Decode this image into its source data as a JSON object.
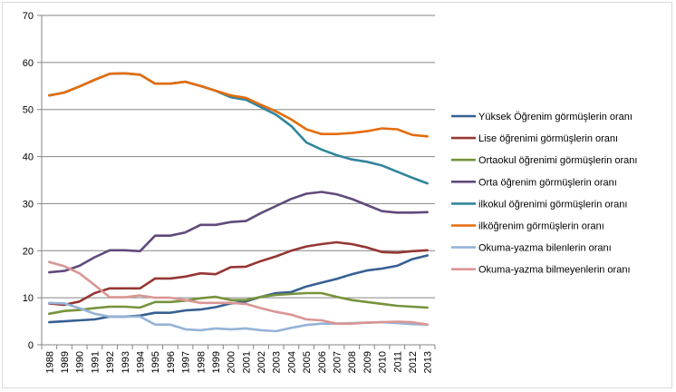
{
  "chart_data": {
    "type": "line",
    "title": "",
    "xlabel": "",
    "ylabel": "",
    "ylim": [
      0,
      70
    ],
    "yticks": [
      "0",
      "10",
      "20",
      "30",
      "40",
      "50",
      "60",
      "70"
    ],
    "grid": true,
    "legend_position": "right",
    "categories": [
      "1988",
      "1989",
      "1990",
      "1991",
      "1992",
      "1993",
      "1994",
      "1995",
      "1996",
      "1997",
      "1998",
      "1999",
      "2000",
      "2001",
      "2002",
      "2003",
      "2004",
      "2005",
      "2006",
      "2007",
      "2008",
      "2009",
      "2010",
      "2011",
      "2012",
      "2013"
    ],
    "series": [
      {
        "name": "Yüksek Öğrenim görmüşlerin oranı",
        "color": "#376092",
        "values": [
          4.8,
          5.0,
          5.2,
          5.4,
          6.0,
          6.0,
          6.2,
          6.8,
          6.8,
          7.3,
          7.5,
          8.0,
          8.8,
          9.2,
          10.2,
          11.0,
          11.2,
          12.4,
          13.2,
          14.0,
          15.0,
          15.8,
          16.2,
          16.8,
          18.2,
          19.0
        ]
      },
      {
        "name": "Lise öğrenimi görmüşlerin oranı",
        "color": "#953735",
        "values": [
          8.8,
          8.5,
          9.2,
          11.0,
          12.0,
          12.0,
          12.0,
          14.1,
          14.1,
          14.5,
          15.2,
          15.0,
          16.5,
          16.6,
          17.8,
          18.8,
          20.0,
          20.9,
          21.4,
          21.8,
          21.4,
          20.7,
          19.7,
          19.6,
          19.9,
          20.1
        ]
      },
      {
        "name": "Ortaokul öğrenimi görmüşlerin oranı",
        "color": "#77933C",
        "values": [
          6.6,
          7.2,
          7.4,
          7.8,
          8.1,
          8.1,
          7.9,
          9.1,
          9.1,
          9.4,
          9.9,
          10.2,
          9.5,
          9.5,
          10.2,
          10.6,
          10.8,
          11.0,
          11.0,
          10.2,
          9.5,
          9.1,
          8.7,
          8.3,
          8.1,
          7.9
        ]
      },
      {
        "name": "Orta öğrenim görmüşlerin oranı",
        "color": "#604A7B",
        "values": [
          15.4,
          15.7,
          16.8,
          18.6,
          20.1,
          20.1,
          19.9,
          23.2,
          23.2,
          23.9,
          25.5,
          25.5,
          26.1,
          26.3,
          28.0,
          29.5,
          31.0,
          32.1,
          32.5,
          32.0,
          31.0,
          29.7,
          28.4,
          28.1,
          28.1,
          28.2
        ]
      },
      {
        "name": "ilkokul öğrenimi görmüşlerin oranı",
        "color": "#31859C",
        "values": [
          53.0,
          53.6,
          54.9,
          56.3,
          57.6,
          57.7,
          57.4,
          55.5,
          55.5,
          55.9,
          55.0,
          54.0,
          52.6,
          52.1,
          50.5,
          48.9,
          46.5,
          43.0,
          41.5,
          40.3,
          39.4,
          38.9,
          38.1,
          36.8,
          35.5,
          34.3
        ]
      },
      {
        "name": "ilköğrenim görmüşlerin oranı",
        "color": "#E46C0A",
        "values": [
          53.0,
          53.6,
          54.9,
          56.3,
          57.6,
          57.7,
          57.4,
          55.5,
          55.5,
          55.9,
          55.0,
          54.0,
          53.0,
          52.5,
          51.0,
          49.6,
          47.9,
          45.8,
          44.8,
          44.8,
          45.0,
          45.4,
          46.0,
          45.8,
          44.6,
          44.3
        ]
      },
      {
        "name": "Okuma-yazma bilenlerin  oranı",
        "color": "#95B3D7",
        "values": [
          8.9,
          8.8,
          7.8,
          6.6,
          6.0,
          6.0,
          6.0,
          4.3,
          4.3,
          3.3,
          3.1,
          3.5,
          3.3,
          3.5,
          3.1,
          2.9,
          3.6,
          4.2,
          4.5,
          4.5,
          4.6,
          4.7,
          4.8,
          4.6,
          4.4,
          4.3
        ]
      },
      {
        "name": "Okuma-yazma bilmeyenlerin oranı",
        "color": "#D99694",
        "values": [
          17.6,
          16.7,
          15.2,
          12.7,
          10.1,
          10.1,
          10.5,
          10.0,
          10.0,
          9.5,
          8.9,
          8.9,
          8.9,
          8.7,
          7.8,
          7.0,
          6.4,
          5.4,
          5.2,
          4.5,
          4.5,
          4.7,
          4.8,
          4.9,
          4.8,
          4.3
        ]
      }
    ]
  }
}
